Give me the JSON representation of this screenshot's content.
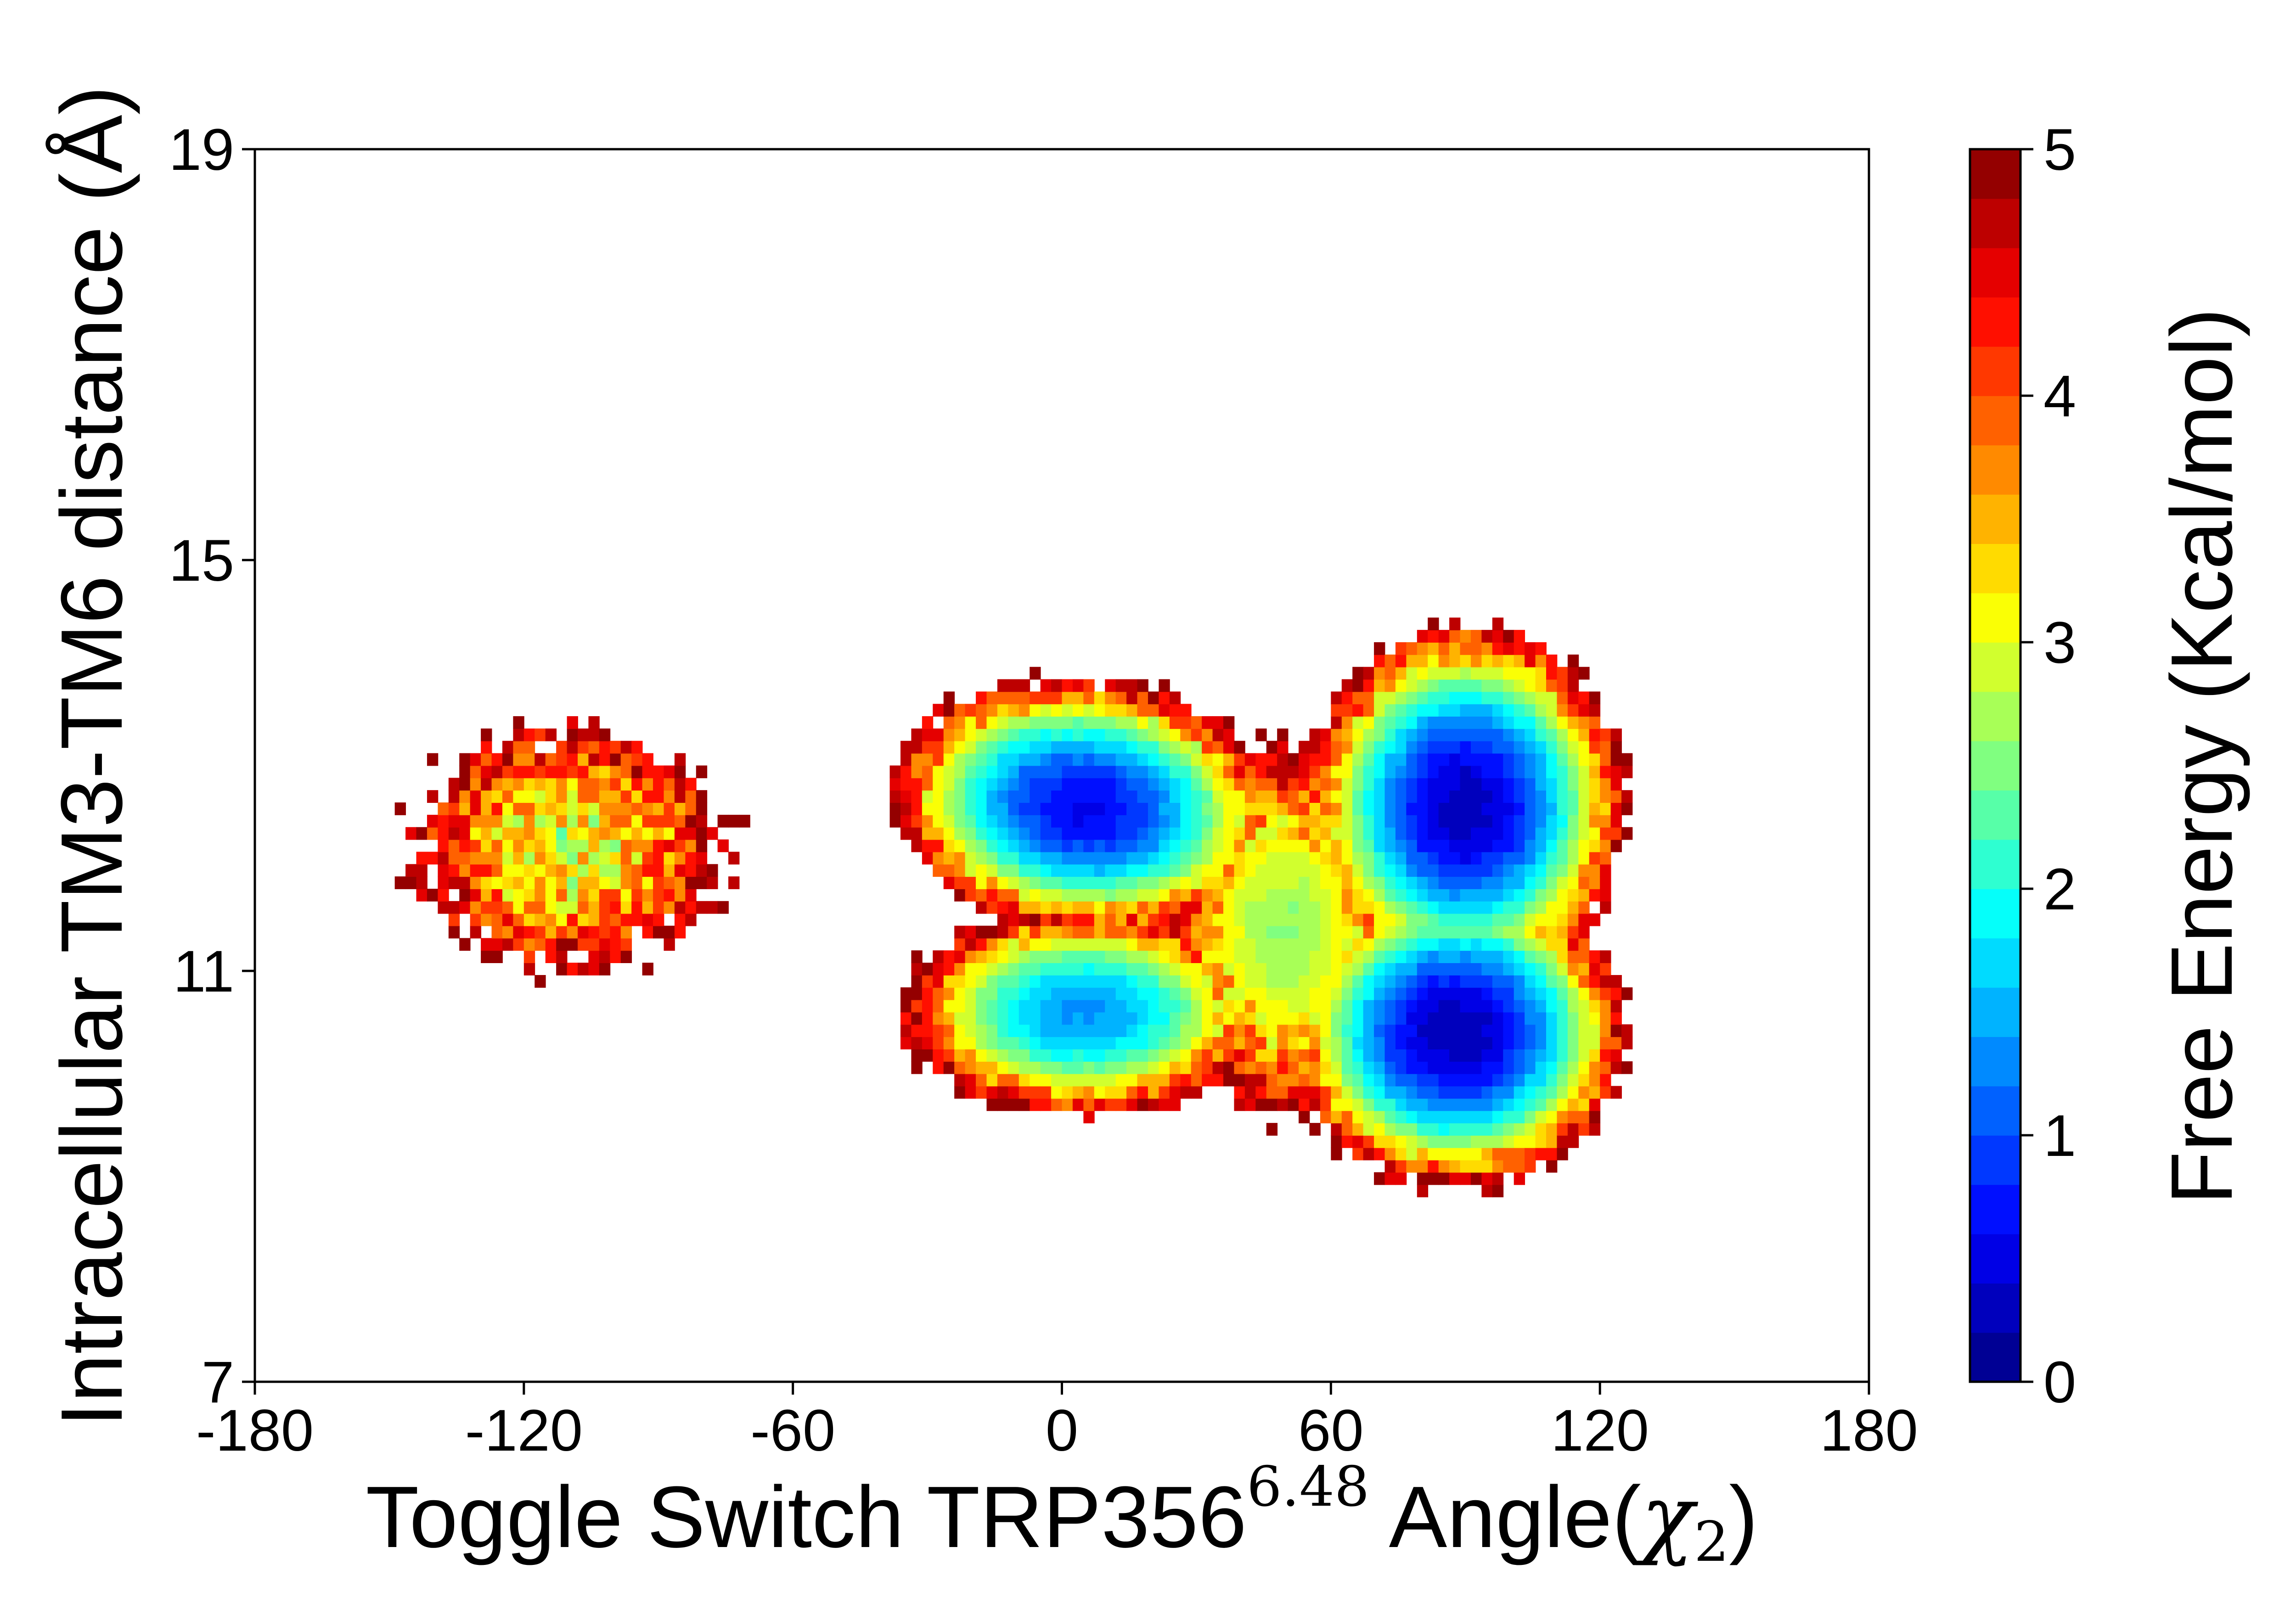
{
  "chart_data": {
    "type": "heatmap",
    "subtype": "filled-contour free energy landscape",
    "title": "",
    "xlabel": {
      "prefix": "Toggle Switch TRP356",
      "superscript": "6.48",
      "suffix": " Angle(",
      "math_symbol": "χ",
      "math_subscript": "2",
      "close": ")"
    },
    "ylabel": "Intracellular TM3-TM6 distance (Å)",
    "xlim": [
      -180,
      180
    ],
    "ylim": [
      7,
      19
    ],
    "xticks": [
      "-180",
      "-120",
      "-60",
      "0",
      "60",
      "120",
      "180"
    ],
    "xtick_values": [
      -180,
      -120,
      -60,
      0,
      60,
      120,
      180
    ],
    "yticks": [
      "7",
      "11",
      "15",
      "19"
    ],
    "ytick_values": [
      7,
      11,
      15,
      19
    ],
    "grid": false,
    "colormap": "jet",
    "colorbar": {
      "label": "Free Energy (Kcal/mol)",
      "range": [
        0,
        5
      ],
      "ticks": [
        "0",
        "1",
        "2",
        "3",
        "4",
        "5"
      ],
      "tick_values": [
        0,
        1,
        2,
        3,
        4,
        5
      ],
      "levels": 25,
      "colors": [
        "#00007f",
        "#0000c8",
        "#0000ff",
        "#0040ff",
        "#0080ff",
        "#00b0ff",
        "#00e4f8",
        "#29ffce",
        "#60ff97",
        "#97ff60",
        "#ceff29",
        "#ffe600",
        "#ffb900",
        "#ff8200",
        "#ff4600",
        "#ff1300",
        "#c80000",
        "#7f0000"
      ]
    },
    "basins": [
      {
        "x": 5,
        "y": 12.6,
        "min_energy": 0.6,
        "sx": 21,
        "sy": 0.62,
        "rot": 0.2
      },
      {
        "x": 90,
        "y": 12.6,
        "min_energy": 0.3,
        "sx": 17,
        "sy": 0.85,
        "rot": 0
      },
      {
        "x": 88,
        "y": 10.4,
        "min_energy": 0.25,
        "sx": 18,
        "sy": 0.72,
        "rot": 0
      },
      {
        "x": 5,
        "y": 10.6,
        "min_energy": 1.35,
        "sx": 22,
        "sy": 0.55,
        "rot": 0
      },
      {
        "x": 50,
        "y": 11.4,
        "min_energy": 2.6,
        "sx": 18,
        "sy": 1.2,
        "rot": 0
      },
      {
        "x": -110,
        "y": 12.2,
        "min_energy": 3.0,
        "sx": 25,
        "sy": 0.85,
        "rot": 0
      }
    ],
    "energy_cap": 5
  }
}
